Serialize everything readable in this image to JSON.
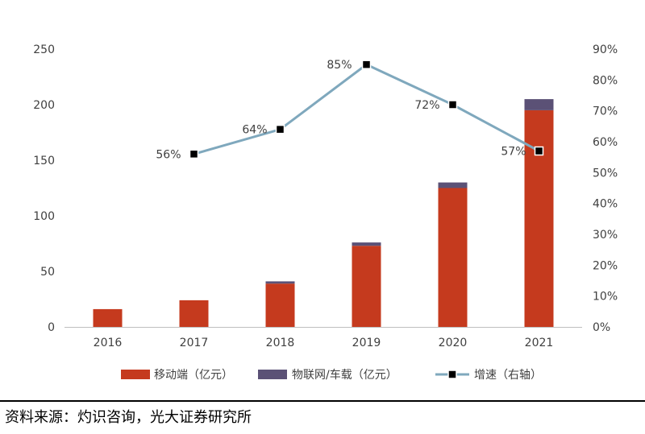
{
  "chart_data": {
    "type": "bar",
    "categories": [
      "2016",
      "2017",
      "2018",
      "2019",
      "2020",
      "2021"
    ],
    "series": [
      {
        "name": "移动端（亿元）",
        "type": "bar",
        "axis": "left",
        "color": "#C53A1E",
        "values": [
          16,
          24,
          39,
          73,
          125,
          195
        ]
      },
      {
        "name": "物联网/车载（亿元）",
        "type": "bar",
        "axis": "left",
        "color": "#5B5176",
        "values": [
          0,
          0,
          2,
          3,
          5,
          10
        ]
      },
      {
        "name": "增速（右轴）",
        "type": "line",
        "axis": "right",
        "color": "#7FA8BD",
        "values": [
          null,
          56,
          64,
          85,
          72,
          57
        ],
        "labels": [
          null,
          "56%",
          "64%",
          "85%",
          "72%",
          "57%"
        ]
      }
    ],
    "left_axis": {
      "ylim": [
        0,
        250
      ],
      "ticks": [
        0,
        50,
        100,
        150,
        200,
        250
      ]
    },
    "right_axis": {
      "ylim": [
        0,
        90
      ],
      "ticks": [
        "0%",
        "10%",
        "20%",
        "30%",
        "40%",
        "50%",
        "60%",
        "70%",
        "80%",
        "90%"
      ]
    },
    "legend_position": "bottom"
  },
  "source_text": "资料来源：灼识咨询，光大证券研究所"
}
